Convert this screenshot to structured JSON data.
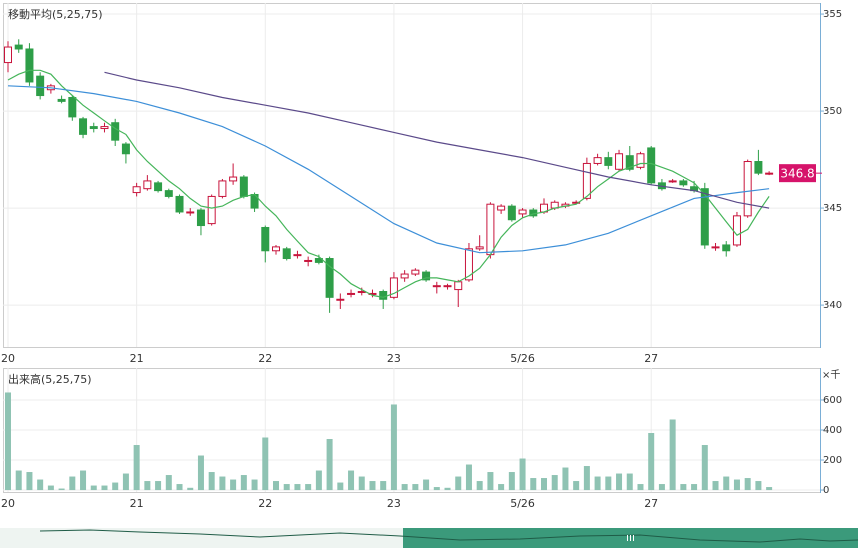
{
  "chart_data": [
    {
      "type": "candlestick",
      "title": "移動平均(5,25,75)",
      "categories": [
        "20",
        null,
        null,
        null,
        null,
        null,
        null,
        null,
        null,
        null,
        null,
        null,
        "21",
        null,
        null,
        null,
        null,
        null,
        null,
        null,
        null,
        null,
        null,
        null,
        "22",
        null,
        null,
        null,
        null,
        null,
        null,
        null,
        null,
        null,
        null,
        null,
        "23",
        null,
        null,
        null,
        null,
        null,
        null,
        null,
        null,
        null,
        null,
        null,
        "5/26",
        null,
        null,
        null,
        null,
        null,
        null,
        null,
        null,
        null,
        null,
        null,
        "27",
        null,
        null,
        null,
        null,
        null,
        null,
        null,
        null,
        null,
        null,
        null
      ],
      "open": [
        352.5,
        353.4,
        353.2,
        351.8,
        351.1,
        350.6,
        350.7,
        349.6,
        349.2,
        349.1,
        349.4,
        348.3,
        345.8,
        346.0,
        346.3,
        345.9,
        345.6,
        344.8,
        344.9,
        344.2,
        345.6,
        346.4,
        346.6,
        345.7,
        344.0,
        342.8,
        342.9,
        342.6,
        342.3,
        342.4,
        342.4,
        340.3,
        340.6,
        340.7,
        340.6,
        340.7,
        340.4,
        341.4,
        341.6,
        341.7,
        341.0,
        341.0,
        340.8,
        341.3,
        342.9,
        342.6,
        344.9,
        345.1,
        344.7,
        344.9,
        344.8,
        345.0,
        345.1,
        345.3,
        345.5,
        347.3,
        347.6,
        347.0,
        347.7,
        347.1,
        348.1,
        346.3,
        346.4,
        346.4,
        346.1,
        346.0,
        343.0,
        343.1,
        343.1,
        344.6,
        347.4,
        346.8
      ],
      "high": [
        353.6,
        353.7,
        353.5,
        352.0,
        351.4,
        350.8,
        350.8,
        349.7,
        349.4,
        349.4,
        349.6,
        348.4,
        346.3,
        346.7,
        346.4,
        346.0,
        345.7,
        345.0,
        345.0,
        345.7,
        346.5,
        347.3,
        346.7,
        345.8,
        344.1,
        343.1,
        343.0,
        342.8,
        342.5,
        342.6,
        342.5,
        340.6,
        340.8,
        340.9,
        340.8,
        340.8,
        341.7,
        341.8,
        341.9,
        341.8,
        341.2,
        341.1,
        341.3,
        343.2,
        343.6,
        345.3,
        345.2,
        345.2,
        345.0,
        345.0,
        345.5,
        345.4,
        345.3,
        345.4,
        347.6,
        347.8,
        347.9,
        348.0,
        348.2,
        347.9,
        348.2,
        346.5,
        346.5,
        346.5,
        346.4,
        346.3,
        343.2,
        343.3,
        344.8,
        347.5,
        348.0,
        346.9
      ],
      "low": [
        352.0,
        353.0,
        351.3,
        350.6,
        350.9,
        350.4,
        349.5,
        348.6,
        348.9,
        348.9,
        348.2,
        347.3,
        345.6,
        345.9,
        345.8,
        345.5,
        344.7,
        344.6,
        343.6,
        344.1,
        345.5,
        346.2,
        345.5,
        344.8,
        342.2,
        342.6,
        342.3,
        342.4,
        342.0,
        342.1,
        339.6,
        339.8,
        340.4,
        340.5,
        340.4,
        339.8,
        340.3,
        341.2,
        341.5,
        341.2,
        340.6,
        340.8,
        339.9,
        341.2,
        342.8,
        342.4,
        344.7,
        344.3,
        344.5,
        344.5,
        344.7,
        344.9,
        345.0,
        345.2,
        345.4,
        347.2,
        347.0,
        346.9,
        346.9,
        347.0,
        346.2,
        345.9,
        346.3,
        346.1,
        345.8,
        342.9,
        342.8,
        342.5,
        343.0,
        344.5,
        346.7,
        346.7
      ],
      "close": [
        353.3,
        353.2,
        351.5,
        350.8,
        351.3,
        350.5,
        349.7,
        348.8,
        349.1,
        349.2,
        348.5,
        347.8,
        346.1,
        346.4,
        345.9,
        345.6,
        344.8,
        344.8,
        344.1,
        345.6,
        346.4,
        346.6,
        345.6,
        345.0,
        342.8,
        343.0,
        342.4,
        342.6,
        342.3,
        342.2,
        340.4,
        340.3,
        340.6,
        340.7,
        340.6,
        340.3,
        341.4,
        341.6,
        341.8,
        341.3,
        341.0,
        341.0,
        341.2,
        342.9,
        343.0,
        345.2,
        345.1,
        344.4,
        344.9,
        344.6,
        345.2,
        345.3,
        345.2,
        345.3,
        347.3,
        347.6,
        347.2,
        347.8,
        347.0,
        347.8,
        346.3,
        346.0,
        346.4,
        346.2,
        345.9,
        343.1,
        343.0,
        342.8,
        344.6,
        347.4,
        346.8,
        346.8
      ],
      "up_color": "#c8143c",
      "down_color": "#2e9e48",
      "series": [
        {
          "color": "#45b55a",
          "values": [
            351.6,
            351.9,
            352.1,
            352.1,
            351.9,
            351.3,
            350.8,
            350.3,
            349.9,
            349.5,
            349.1,
            348.8,
            348.0,
            347.4,
            346.9,
            346.4,
            346.0,
            345.5,
            345.1,
            345.0,
            345.1,
            345.4,
            345.6,
            345.7,
            345.1,
            344.6,
            343.9,
            343.3,
            342.7,
            342.5,
            342.0,
            341.6,
            341.1,
            340.8,
            340.5,
            340.4,
            340.6,
            340.9,
            341.2,
            341.4,
            341.4,
            341.3,
            341.2,
            341.5,
            341.9,
            342.6,
            343.5,
            344.1,
            344.5,
            344.7,
            344.8,
            345.0,
            345.1,
            345.2,
            345.6,
            346.1,
            346.5,
            346.9,
            347.1,
            347.3,
            347.3,
            347.1,
            346.9,
            346.6,
            346.3,
            345.7,
            345.0,
            344.3,
            343.6,
            343.9,
            344.8,
            345.6
          ]
        },
        {
          "color": "#3d8fd8",
          "x": [
            0,
            4,
            8,
            12,
            16,
            20,
            24,
            28,
            32,
            36,
            40,
            44,
            48,
            52,
            56,
            60,
            64,
            68,
            71
          ],
          "values": [
            351.3,
            351.2,
            350.9,
            350.5,
            349.9,
            349.2,
            348.2,
            347.0,
            345.6,
            344.2,
            343.2,
            342.7,
            342.8,
            343.1,
            343.7,
            344.6,
            345.5,
            345.8,
            346.0
          ]
        },
        {
          "color": "#5b4a8a",
          "x": [
            9,
            12,
            16,
            20,
            24,
            28,
            32,
            36,
            40,
            44,
            48,
            52,
            56,
            60,
            64,
            68,
            71
          ],
          "values": [
            352.0,
            351.6,
            351.2,
            350.7,
            350.3,
            349.9,
            349.4,
            348.9,
            348.4,
            348.0,
            347.6,
            347.1,
            346.6,
            346.2,
            345.9,
            345.3,
            345.0
          ]
        }
      ],
      "ylim": [
        337.84,
        355.57
      ],
      "yticks": [
        340,
        345,
        350,
        355
      ],
      "grid": true,
      "price_label_color": "#d6136a"
    },
    {
      "type": "bar",
      "title": "出来高(5,25,75)",
      "unit": "×千",
      "categories": [
        "20",
        null,
        null,
        null,
        null,
        null,
        null,
        null,
        null,
        null,
        null,
        null,
        "21",
        null,
        null,
        null,
        null,
        null,
        null,
        null,
        null,
        null,
        null,
        null,
        "22",
        null,
        null,
        null,
        null,
        null,
        null,
        null,
        null,
        null,
        null,
        null,
        "23",
        null,
        null,
        null,
        null,
        null,
        null,
        null,
        null,
        null,
        null,
        null,
        "5/26",
        null,
        null,
        null,
        null,
        null,
        null,
        null,
        null,
        null,
        null,
        null,
        "27",
        null,
        null,
        null,
        null,
        null,
        null,
        null,
        null,
        null,
        null,
        null
      ],
      "values": [
        650,
        130,
        120,
        70,
        30,
        10,
        90,
        130,
        30,
        30,
        50,
        110,
        300,
        60,
        60,
        100,
        40,
        15,
        230,
        120,
        90,
        70,
        100,
        70,
        350,
        60,
        40,
        40,
        40,
        130,
        340,
        50,
        130,
        90,
        60,
        60,
        570,
        40,
        40,
        70,
        20,
        15,
        90,
        170,
        60,
        120,
        40,
        120,
        210,
        80,
        80,
        100,
        150,
        60,
        160,
        90,
        90,
        110,
        110,
        40,
        380,
        40,
        470,
        40,
        40,
        300,
        60,
        90,
        70,
        80,
        60,
        20
      ],
      "color": "#8fc3b3",
      "ylim": [
        -13,
        813
      ],
      "yticks": [
        0,
        200,
        400,
        600
      ],
      "grid": true
    }
  ]
}
